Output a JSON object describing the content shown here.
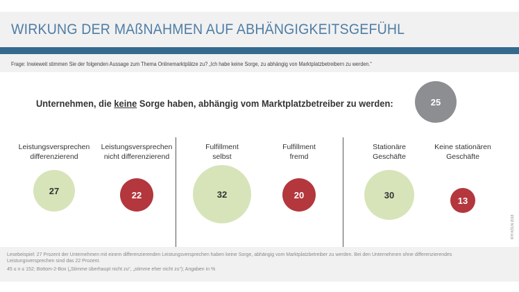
{
  "header": {
    "title": "WIRKUNG DER MAßNAHMEN AUF ABHÄNGIGKEITSGEFÜHL"
  },
  "question": "Frage: Inwieweit stimmen Sie der folgenden Aussage zum Thema Onlinemarktplätze zu? „Ich habe keine Sorge, zu abhängig von Marktplatzbetreibern zu werden.“",
  "chart_data": {
    "type": "bubble",
    "headline": {
      "before": "Unternehmen, die ",
      "emph": "keine",
      "after": " Sorge haben, abhängig vom Marktplatzbetreiber zu werden:",
      "value": 25
    },
    "groups": [
      {
        "items": [
          {
            "label": "Leistungsversprechen differenzierend",
            "value": 27,
            "color": "#d7e4b9"
          },
          {
            "label": "Leistungsversprechen nicht differenzierend",
            "value": 22,
            "color": "#b3373d"
          }
        ]
      },
      {
        "items": [
          {
            "label": "Fulfillment selbst",
            "value": 32,
            "color": "#d7e4b9"
          },
          {
            "label": "Fulfillment fremd",
            "value": 20,
            "color": "#b3373d"
          }
        ]
      },
      {
        "items": [
          {
            "label": "Stationäre Geschäfte",
            "value": 30,
            "color": "#d7e4b9"
          },
          {
            "label": "Keine stationären Geschäfte",
            "value": 13,
            "color": "#b3373d"
          }
        ]
      }
    ],
    "unit": "%"
  },
  "labels": [
    "Leistungsversprechen",
    "differenzierend",
    "Leistungsversprechen",
    "nicht differenzierend",
    "Fulfillment",
    "selbst",
    "Fulfillment",
    "fremd",
    "Stationäre",
    "Geschäfte",
    "Keine stationären",
    "Geschäfte"
  ],
  "footer": {
    "line1": "Lesebeispiel: 27 Prozent der Unternehmen mit einem differenzierenden Leistungsversprechen haben keine Sorge, abhängig vom Marktplatzbetreiber zu werden. Bei den Unternehmen ohne differenzierendes",
    "line2": "Leistungsversprechen sind das 22 Prozent.",
    "line3": "45 ≤ n ≤ 152; Bottom-2-Box („Stimme überhaupt nicht zu“, „stimme eher nicht zu“); Angaben in %"
  },
  "watermark": "IFH KÖLN 2018"
}
